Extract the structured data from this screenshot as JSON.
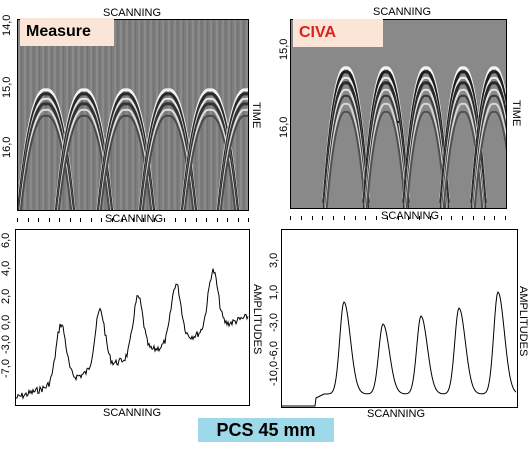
{
  "tl": {
    "top_label": "SCANNING",
    "bottom_label": "SCANNING",
    "right_label": "TIME",
    "legend": "Measure",
    "ticks": [
      "14,0",
      "15,0",
      "16,0"
    ]
  },
  "tr": {
    "top_label": "SCANNING",
    "bottom_label": "SCANNING",
    "right_label": "TIME",
    "legend": "CIVA",
    "legend_color": "#e02020",
    "ticks": [
      "15,0",
      "16,0"
    ]
  },
  "bl": {
    "bottom_label": "SCANNING",
    "right_label": "AMPLITUDES",
    "ticks": [
      "6,0",
      "4,0",
      "2,0",
      "0,0",
      "-3,0",
      "-7,0"
    ]
  },
  "br": {
    "bottom_label": "SCANNING",
    "right_label": "AMPLITUDES",
    "ticks": [
      "3,0",
      "1,0",
      "-3,0",
      "-6,0",
      "-10,0"
    ]
  },
  "caption": "PCS 45 mm"
}
